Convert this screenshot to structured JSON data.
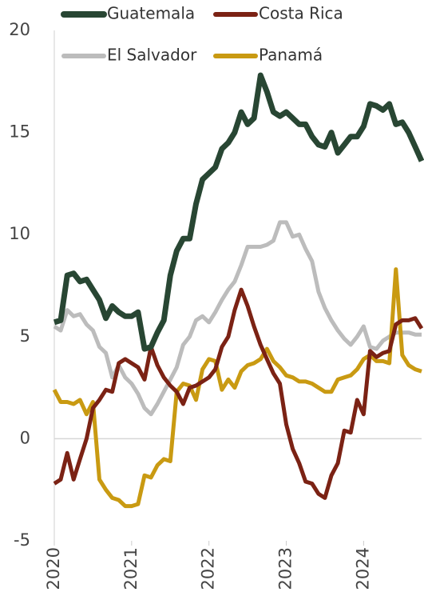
{
  "chart_data": {
    "type": "line",
    "x": [
      2020,
      2020.083,
      2020.167,
      2020.25,
      2020.333,
      2020.417,
      2020.5,
      2020.583,
      2020.667,
      2020.75,
      2020.833,
      2020.917,
      2021,
      2021.083,
      2021.167,
      2021.25,
      2021.333,
      2021.417,
      2021.5,
      2021.583,
      2021.667,
      2021.75,
      2021.833,
      2021.917,
      2022,
      2022.083,
      2022.167,
      2022.25,
      2022.333,
      2022.417,
      2022.5,
      2022.583,
      2022.667,
      2022.75,
      2022.833,
      2022.917,
      2023,
      2023.083,
      2023.167,
      2023.25,
      2023.333,
      2023.417,
      2023.5,
      2023.583,
      2023.667,
      2023.75,
      2023.833,
      2023.917,
      2024,
      2024.083,
      2024.167,
      2024.25,
      2024.333,
      2024.417,
      2024.5,
      2024.583,
      2024.667,
      2024.75
    ],
    "series": [
      {
        "name": "Guatemala",
        "color": "#284633",
        "values": [
          5.7,
          5.8,
          8.0,
          8.1,
          7.7,
          7.8,
          7.3,
          6.8,
          5.9,
          6.5,
          6.2,
          6.0,
          6.0,
          6.2,
          4.4,
          4.5,
          5.2,
          5.8,
          8.0,
          9.2,
          9.8,
          9.8,
          11.5,
          12.7,
          13.0,
          13.3,
          14.2,
          14.5,
          15.0,
          16.0,
          15.4,
          15.7,
          17.8,
          17.0,
          16.0,
          15.8,
          16.0,
          15.7,
          15.4,
          15.4,
          14.8,
          14.4,
          14.3,
          15.0,
          14.0,
          14.4,
          14.8,
          14.8,
          15.3,
          16.4,
          16.3,
          16.1,
          16.4,
          15.4,
          15.5,
          15.0,
          14.3,
          13.6
        ]
      },
      {
        "name": "Costa Rica",
        "color": "#7b2214",
        "values": [
          -2.2,
          -2.0,
          -0.7,
          -2.0,
          -1.0,
          0.0,
          1.5,
          1.9,
          2.4,
          2.3,
          3.7,
          3.9,
          3.7,
          3.5,
          2.9,
          4.5,
          3.6,
          3.0,
          2.6,
          2.3,
          1.7,
          2.5,
          2.6,
          2.8,
          3.0,
          3.4,
          4.5,
          5.0,
          6.3,
          7.3,
          6.5,
          5.5,
          4.6,
          3.9,
          3.2,
          2.7,
          0.7,
          -0.5,
          -1.2,
          -2.1,
          -2.2,
          -2.7,
          -2.9,
          -1.8,
          -1.2,
          0.4,
          0.3,
          1.9,
          1.2,
          4.3,
          4.0,
          4.2,
          4.3,
          5.6,
          5.8,
          5.8,
          5.9,
          5.4
        ]
      },
      {
        "name": "El Salvador",
        "color": "#bcbcbc",
        "values": [
          5.5,
          5.3,
          6.3,
          6.0,
          6.1,
          5.6,
          5.3,
          4.5,
          4.2,
          3.0,
          3.6,
          3.0,
          2.7,
          2.2,
          1.5,
          1.2,
          1.7,
          2.3,
          2.9,
          3.5,
          4.6,
          5.0,
          5.8,
          6.0,
          5.7,
          6.2,
          6.8,
          7.3,
          7.7,
          8.5,
          9.4,
          9.4,
          9.4,
          9.5,
          9.7,
          10.6,
          10.6,
          9.9,
          10.0,
          9.3,
          8.7,
          7.2,
          6.4,
          5.8,
          5.3,
          4.9,
          4.6,
          5.0,
          5.5,
          4.5,
          4.4,
          4.8,
          5.0,
          5.2,
          5.2,
          5.2,
          5.1,
          5.1
        ]
      },
      {
        "name": "Panamá",
        "color": "#c99a12",
        "values": [
          2.4,
          1.8,
          1.8,
          1.7,
          1.9,
          1.2,
          1.8,
          -2.0,
          -2.5,
          -2.9,
          -3.0,
          -3.3,
          -3.3,
          -3.2,
          -1.8,
          -1.9,
          -1.3,
          -1.0,
          -1.1,
          2.3,
          2.7,
          2.6,
          1.9,
          3.4,
          3.9,
          3.8,
          2.4,
          2.9,
          2.5,
          3.3,
          3.6,
          3.7,
          3.9,
          4.4,
          3.8,
          3.5,
          3.1,
          3.0,
          2.8,
          2.8,
          2.7,
          2.5,
          2.3,
          2.3,
          2.9,
          3.0,
          3.1,
          3.4,
          3.9,
          4.1,
          3.8,
          3.8,
          3.7,
          8.3,
          4.1,
          3.6,
          3.4,
          3.3
        ]
      }
    ],
    "xlim": [
      2020,
      2024.75
    ],
    "xticks": [
      2020,
      2021,
      2022,
      2023,
      2024
    ],
    "ylim": [
      -5,
      20
    ],
    "yticks": [
      -5,
      0,
      5,
      10,
      15,
      20
    ]
  }
}
